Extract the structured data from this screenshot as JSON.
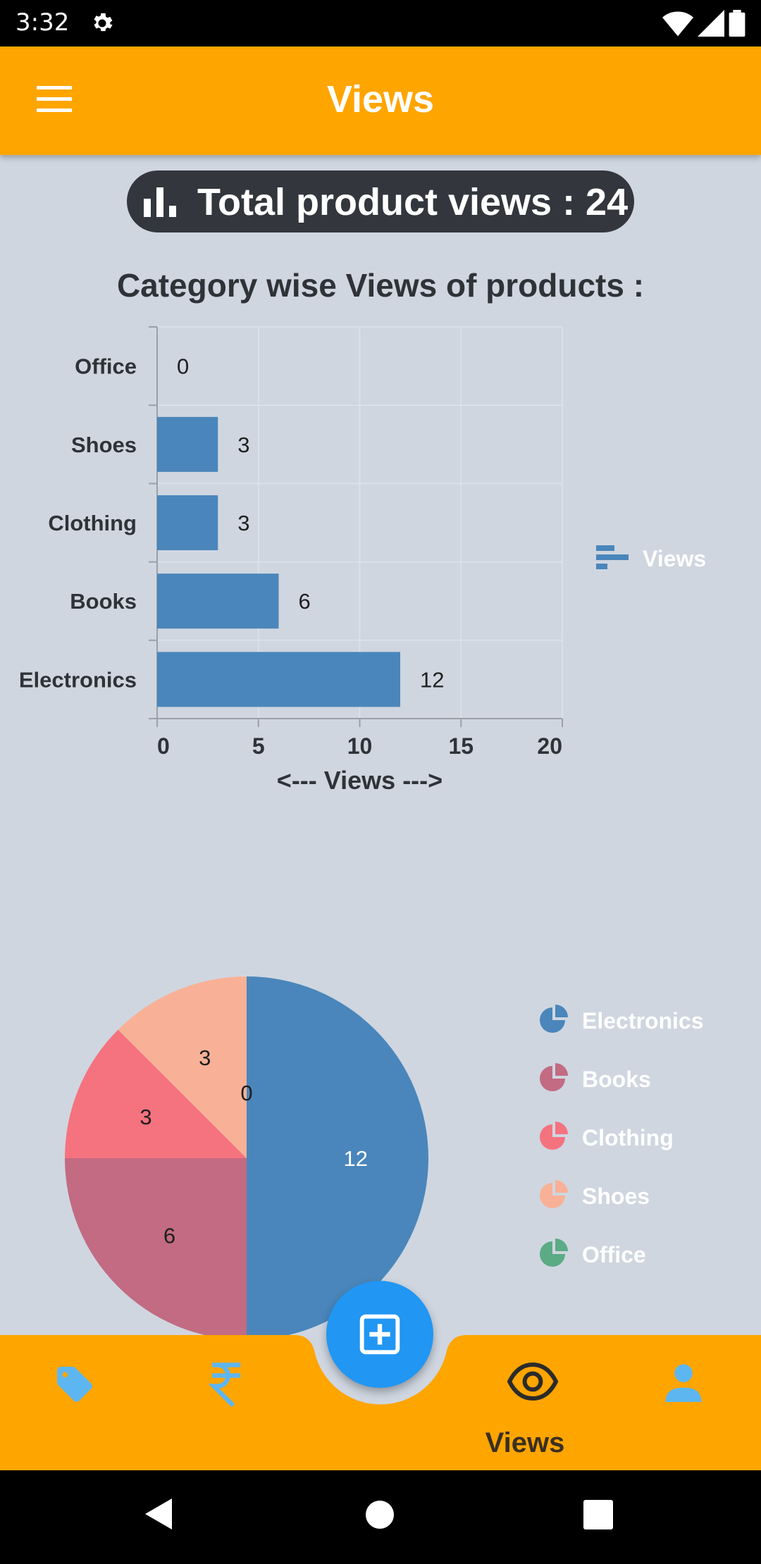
{
  "status_bar": {
    "time": "3:32"
  },
  "app_bar": {
    "title": "Views"
  },
  "summary": {
    "total_views_label": "Total product views : 24"
  },
  "section": {
    "bar_title": "Category wise Views of products :"
  },
  "chart_data": [
    {
      "type": "bar",
      "orientation": "horizontal",
      "categories": [
        "Office",
        "Shoes",
        "Clothing",
        "Books",
        "Electronics"
      ],
      "values": [
        0,
        3,
        3,
        6,
        12
      ],
      "xlabel": "<--- Views --->",
      "xlim": [
        0,
        20
      ],
      "xticks": [
        0,
        5,
        10,
        15,
        20
      ],
      "legend": {
        "position": "right",
        "entries": [
          "Views"
        ]
      },
      "grid": true,
      "color": "#4a86bb"
    },
    {
      "type": "pie",
      "categories": [
        "Electronics",
        "Books",
        "Clothing",
        "Shoes",
        "Office"
      ],
      "values": [
        12,
        6,
        3,
        3,
        0
      ],
      "colors": [
        "#4a86bb",
        "#c26b82",
        "#f5727f",
        "#f8b196",
        "#5bab85"
      ],
      "legend": {
        "position": "right"
      }
    }
  ],
  "bottom_nav": {
    "active_label": "Views",
    "bar_color": "#FFA500",
    "icon_color": "#5eb6f0",
    "items": [
      {
        "icon": "tag-icon"
      },
      {
        "icon": "rupee-icon"
      },
      {
        "icon": "eye-icon"
      },
      {
        "icon": "person-icon"
      }
    ],
    "fab_icon": "add-box-icon"
  }
}
